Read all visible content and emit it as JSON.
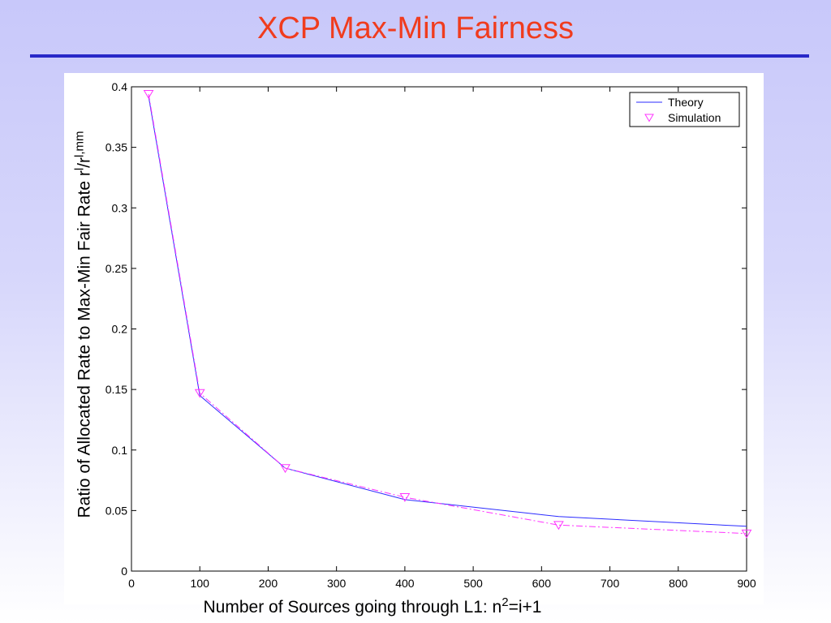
{
  "slide": {
    "title": "XCP Max-Min Fairness"
  },
  "chart_data": {
    "type": "line",
    "x": [
      25,
      100,
      225,
      400,
      625,
      900
    ],
    "series": [
      {
        "name": "Theory",
        "values": [
          0.392,
          0.145,
          0.085,
          0.059,
          0.045,
          0.037
        ],
        "color": "#2b2bff",
        "style": "solid"
      },
      {
        "name": "Simulation",
        "values": [
          0.394,
          0.147,
          0.085,
          0.061,
          0.038,
          0.031
        ],
        "color": "#ff33ff",
        "style": "dash-dot",
        "marker": "triangle-down"
      }
    ],
    "xlim": [
      0,
      900
    ],
    "ylim": [
      0,
      0.4
    ],
    "x_ticks": [
      "0",
      "100",
      "200",
      "300",
      "400",
      "500",
      "600",
      "700",
      "800",
      "900"
    ],
    "y_ticks": [
      "0",
      "0.05",
      "0.1",
      "0.15",
      "0.2",
      "0.25",
      "0.3",
      "0.35",
      "0.4"
    ],
    "xlabel": {
      "main": "Number of Sources going through L1: n",
      "sup": "2",
      "tail": "=i+1"
    },
    "ylabel": {
      "main": "Ratio of Allocated Rate to Max-Min Fair Rate  r",
      "sup1": "l",
      "mid": "/r",
      "sup2": "l,mm"
    },
    "legend_position": "top-right",
    "grid": false
  }
}
